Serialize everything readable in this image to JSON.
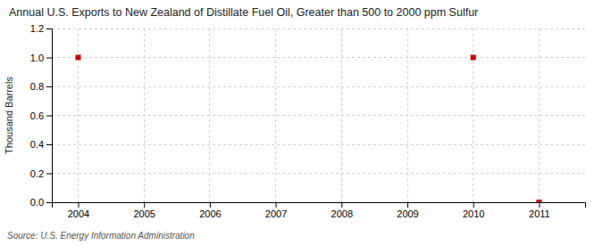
{
  "chart_data": {
    "type": "scatter",
    "title": "Annual U.S. Exports to New Zealand of Distillate Fuel Oil, Greater than 500 to 2000 ppm Sulfur",
    "ylabel": "Thousand Barrels",
    "source": "Source: U.S. Energy Information Administration",
    "x": [
      2004,
      2010,
      2011
    ],
    "values": [
      1.0,
      1.0,
      0.0
    ],
    "color": "#cc0000",
    "marker": "square",
    "xlim": [
      2003.6,
      2011.7
    ],
    "xticks": [
      2004,
      2005,
      2006,
      2007,
      2008,
      2009,
      2010,
      2011
    ],
    "ylim": [
      0.0,
      1.2
    ],
    "yticks": [
      {
        "value": 0.0,
        "label": "0.0"
      },
      0.2,
      0.4,
      0.6,
      0.8,
      {
        "value": 1.0,
        "label": "1.0"
      },
      1.2
    ],
    "grid": true
  }
}
